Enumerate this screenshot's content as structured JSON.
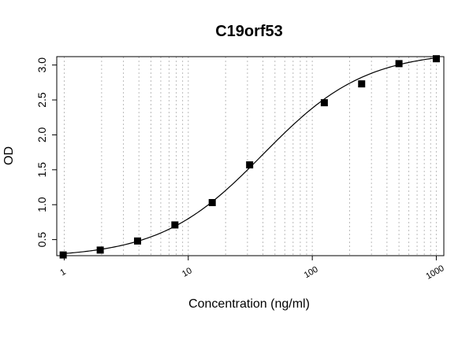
{
  "chart_data": {
    "type": "scatter",
    "title": "C19orf53",
    "xlabel": "Concentration (ng/ml)",
    "ylabel": "OD",
    "x_scale": "log",
    "xlim": [
      0.87,
      1150
    ],
    "ylim": [
      0.27,
      3.12
    ],
    "x_ticks": [
      "1",
      "10",
      "100",
      "1000"
    ],
    "y_ticks": [
      "0.5",
      "1.0",
      "1.5",
      "2.0",
      "2.5",
      "3.0"
    ],
    "grid": "vertical-dotted",
    "points": [
      {
        "x": 0.98,
        "y": 0.28
      },
      {
        "x": 1.95,
        "y": 0.35
      },
      {
        "x": 3.9,
        "y": 0.48
      },
      {
        "x": 7.8,
        "y": 0.71
      },
      {
        "x": 15.6,
        "y": 1.03
      },
      {
        "x": 31.25,
        "y": 1.57
      },
      {
        "x": 125,
        "y": 2.46
      },
      {
        "x": 250,
        "y": 2.73
      },
      {
        "x": 500,
        "y": 3.02
      },
      {
        "x": 1000,
        "y": 3.09
      }
    ],
    "fit": {
      "type": "4PL",
      "bottom": 0.24,
      "top": 3.2,
      "ec50": 40,
      "hill": 1.05
    },
    "colors": {
      "marker": "#000000",
      "line": "#000000",
      "grid": "#bbbbbb",
      "frame": "#000000"
    }
  }
}
